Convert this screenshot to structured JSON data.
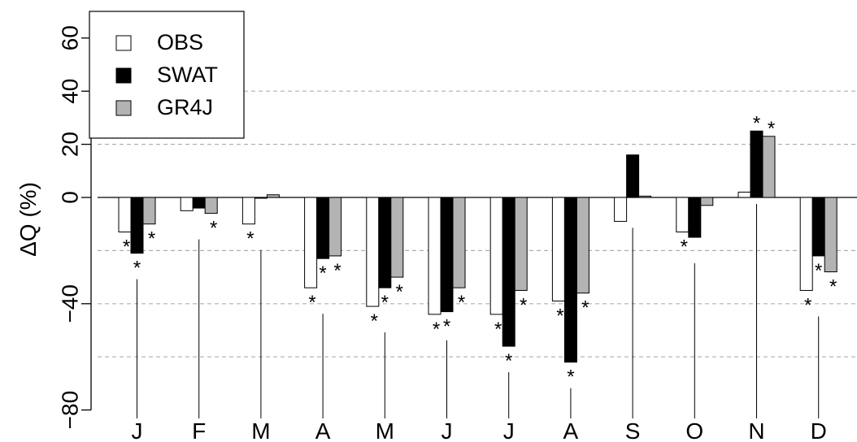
{
  "chart_data": {
    "type": "bar",
    "title": "",
    "xlabel": "",
    "ylabel": "ΔQ (%)",
    "ylim": [
      -80,
      70
    ],
    "y_ticks": [
      -80,
      -40,
      0,
      20,
      40,
      60
    ],
    "y_tick_labels": [
      "−80",
      "−40",
      "0",
      "20",
      "40",
      "60"
    ],
    "gridlines": [
      -60,
      -40,
      -20,
      20,
      40
    ],
    "grid": "dashed horizontal",
    "legend_position": "top-left",
    "categories": [
      "J",
      "F",
      "M",
      "A",
      "M",
      "J",
      "J",
      "A",
      "S",
      "O",
      "N",
      "D"
    ],
    "series": [
      {
        "name": "OBS",
        "color": "#ffffff",
        "values": [
          -13,
          -5,
          -10,
          -34,
          -41,
          -44,
          -44,
          -39,
          -9,
          -13,
          2,
          -35
        ],
        "significant": [
          true,
          false,
          true,
          true,
          true,
          true,
          true,
          true,
          false,
          true,
          false,
          true
        ]
      },
      {
        "name": "SWAT",
        "color": "#000000",
        "values": [
          -21,
          -4,
          0,
          -23,
          -34,
          -43,
          -56,
          -62,
          16,
          -15,
          25,
          -22
        ],
        "significant": [
          true,
          false,
          false,
          true,
          true,
          true,
          true,
          true,
          false,
          false,
          true,
          true
        ]
      },
      {
        "name": "GR4J",
        "color": "#b3b3b3",
        "values": [
          -10,
          -6,
          1,
          -22,
          -30,
          -34,
          -35,
          -36,
          0.5,
          -3,
          23,
          -28
        ],
        "significant": [
          true,
          true,
          false,
          true,
          true,
          true,
          true,
          true,
          false,
          false,
          true,
          true
        ]
      }
    ],
    "significance_marker": "*"
  }
}
